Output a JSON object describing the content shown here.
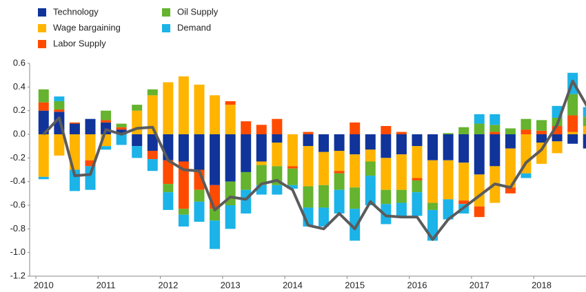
{
  "chart_data": {
    "type": "bar",
    "stacked": true,
    "categories": [
      "2010",
      null,
      null,
      null,
      "2011",
      null,
      null,
      null,
      "2012",
      null,
      null,
      null,
      "2013",
      null,
      null,
      null,
      "2014",
      null,
      null,
      null,
      "2015",
      null,
      null,
      null,
      "2016",
      null,
      null,
      null,
      "2017",
      null,
      null,
      null,
      "2018",
      null,
      null,
      null
    ],
    "series": [
      {
        "name": "Technology",
        "color": "#10349a",
        "values": [
          0.2,
          0.19,
          0.09,
          0.13,
          0.1,
          0.04,
          -0.1,
          -0.14,
          -0.22,
          -0.23,
          -0.3,
          -0.43,
          -0.4,
          -0.32,
          -0.23,
          -0.07,
          0,
          -0.1,
          -0.15,
          -0.14,
          -0.17,
          -0.13,
          -0.2,
          -0.17,
          -0.1,
          -0.22,
          -0.22,
          -0.24,
          -0.34,
          -0.27,
          -0.12,
          0,
          -0.07,
          -0.06,
          -0.08,
          -0.12
        ]
      },
      {
        "name": "Wage bargaining",
        "color": "#ffb400",
        "values": [
          -0.36,
          -0.18,
          -0.3,
          -0.22,
          -0.1,
          0,
          0.2,
          0.33,
          0.44,
          0.49,
          0.42,
          0.33,
          0.25,
          0,
          -0.03,
          -0.2,
          -0.27,
          -0.34,
          -0.28,
          -0.17,
          -0.28,
          -0.1,
          -0.27,
          -0.3,
          -0.27,
          -0.36,
          -0.33,
          -0.32,
          -0.27,
          -0.31,
          -0.33,
          -0.33,
          -0.18,
          -0.1,
          0.02,
          0.07
        ]
      },
      {
        "name": "Labor Supply",
        "color": "#ff4b00",
        "values": [
          0.07,
          0.02,
          0.01,
          -0.05,
          0.02,
          0.02,
          0,
          -0.07,
          -0.2,
          -0.4,
          -0.17,
          -0.2,
          0.03,
          0.11,
          0.08,
          0.13,
          -0.02,
          0.02,
          0,
          -0.02,
          0.1,
          0,
          0.07,
          0.02,
          -0.02,
          0,
          0,
          -0.03,
          -0.09,
          0.02,
          -0.05,
          0.04,
          0.03,
          0.07,
          0.14,
          0
        ]
      },
      {
        "name": "Oil Supply",
        "color": "#65b32e",
        "values": [
          0.11,
          0.07,
          0,
          0,
          0.08,
          0.03,
          0.05,
          0.05,
          -0.07,
          -0.05,
          -0.1,
          -0.1,
          -0.2,
          -0.15,
          -0.17,
          -0.16,
          -0.14,
          -0.18,
          -0.19,
          -0.14,
          -0.18,
          -0.12,
          -0.12,
          -0.11,
          -0.1,
          -0.06,
          0.01,
          0.06,
          0.09,
          0.06,
          0.05,
          0.09,
          0.09,
          0.07,
          0.18,
          0.08
        ]
      },
      {
        "name": "Demand",
        "color": "#1bb3e8",
        "values": [
          -0.02,
          0.04,
          -0.18,
          -0.2,
          -0.03,
          -0.09,
          -0.1,
          -0.1,
          -0.15,
          -0.1,
          -0.17,
          -0.24,
          -0.2,
          -0.2,
          -0.08,
          -0.08,
          -0.03,
          -0.16,
          -0.16,
          -0.2,
          -0.27,
          -0.25,
          -0.17,
          -0.12,
          -0.2,
          -0.26,
          -0.17,
          -0.08,
          0.08,
          0.09,
          0,
          -0.04,
          0,
          0.1,
          0.18,
          0.08
        ]
      },
      {
        "type": "line",
        "color": "#5b5b5b",
        "values": [
          0,
          0.14,
          -0.35,
          -0.34,
          0.04,
          0,
          0.05,
          0.06,
          -0.22,
          -0.3,
          -0.31,
          -0.64,
          -0.53,
          -0.55,
          -0.42,
          -0.39,
          -0.47,
          -0.77,
          -0.8,
          -0.67,
          -0.8,
          -0.57,
          -0.69,
          -0.7,
          -0.7,
          -0.89,
          -0.72,
          -0.62,
          -0.52,
          -0.42,
          -0.45,
          -0.24,
          -0.13,
          0.08,
          0.45,
          0.22
        ]
      }
    ],
    "ylim": [
      -1.2,
      0.6
    ],
    "yticks": [
      0.6,
      0.4,
      0.2,
      {
        "value": 0,
        "label": "0.0"
      },
      -0.2,
      -0.4,
      -0.6,
      -0.8,
      {
        "value": -1,
        "label": "-1.0"
      },
      -1.2
    ],
    "grid": false,
    "legend": "top-left"
  }
}
